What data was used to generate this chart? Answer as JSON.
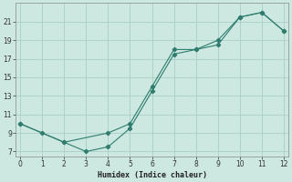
{
  "xlabel": "Humidex (Indice chaleur)",
  "line1_x": [
    0,
    1,
    2,
    3,
    4,
    5,
    6,
    7,
    8,
    9,
    10,
    11,
    12
  ],
  "line1_y": [
    10,
    9,
    8,
    7,
    7.5,
    9.5,
    13.5,
    17.5,
    18,
    18.5,
    21.5,
    22,
    20
  ],
  "line2_x": [
    0,
    2,
    4,
    5,
    6,
    7,
    8,
    9,
    10,
    11,
    12
  ],
  "line2_y": [
    10,
    8,
    9,
    10,
    14,
    18,
    18,
    19,
    21.5,
    22,
    20
  ],
  "xlim": [
    -0.2,
    12.2
  ],
  "ylim": [
    6.5,
    23.0
  ],
  "yticks": [
    7,
    9,
    11,
    13,
    15,
    17,
    19,
    21
  ],
  "xticks": [
    0,
    1,
    2,
    3,
    4,
    5,
    6,
    7,
    8,
    9,
    10,
    11,
    12
  ],
  "line_color": "#2e7d6e",
  "bg_color": "#cce8e0",
  "grid_color": "#aacfc8"
}
